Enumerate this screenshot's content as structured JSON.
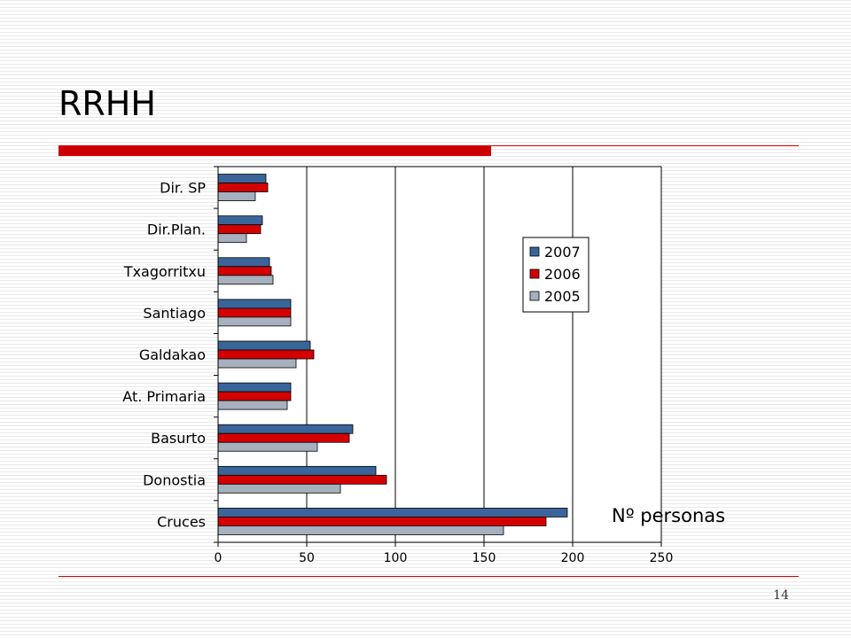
{
  "slide": {
    "title": "RRHH",
    "page_number": "14"
  },
  "chart_data": {
    "type": "bar",
    "orientation": "horizontal",
    "categories": [
      "Dir. SP",
      "Dir.Plan.",
      "Txagorritxu",
      "Santiago",
      "Galdakao",
      "At. Primaria",
      "Basurto",
      "Donostia",
      "Cruces"
    ],
    "series": [
      {
        "name": "2007",
        "color": "#3a659a",
        "values": [
          27,
          25,
          29,
          41,
          52,
          41,
          76,
          89,
          197
        ]
      },
      {
        "name": "2006",
        "color": "#d40000",
        "values": [
          28,
          24,
          30,
          41,
          54,
          41,
          74,
          95,
          185
        ]
      },
      {
        "name": "2005",
        "color": "#a6b0be",
        "values": [
          21,
          16,
          31,
          41,
          44,
          39,
          56,
          69,
          161
        ]
      }
    ],
    "xlim": [
      0,
      250
    ],
    "x_ticks": [
      "0",
      "50",
      "100",
      "150",
      "200",
      "250"
    ],
    "unit_label": "Nº personas",
    "legend_position": "right",
    "grid": true
  }
}
